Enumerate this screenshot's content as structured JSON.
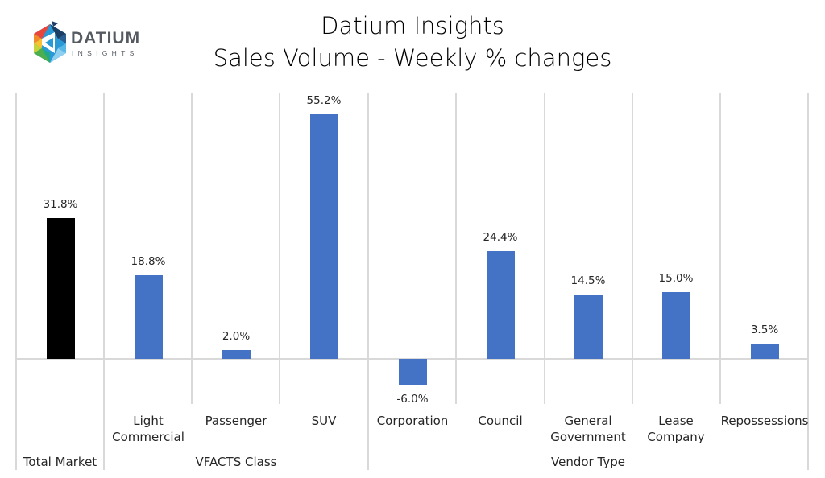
{
  "logo": {
    "word": "DATIUM",
    "sub": "INSIGHTS"
  },
  "title": {
    "line1": "Datium Insights",
    "line2": "Sales Volume - Weekly % changes"
  },
  "colors": {
    "total_bar": "#000000",
    "series_bar": "#4472C4",
    "grid": "#d9d9d9",
    "text": "#262626"
  },
  "groups": [
    {
      "label": "Total Market"
    },
    {
      "label": "VFACTS Class"
    },
    {
      "label": "Vendor Type"
    }
  ],
  "bars": [
    {
      "group": "Total Market",
      "category": "",
      "value": 31.8,
      "label": "31.8%",
      "color": "#000000"
    },
    {
      "group": "VFACTS Class",
      "category": "Light Commercial",
      "line1": "Light",
      "line2": "Commercial",
      "value": 18.8,
      "label": "18.8%",
      "color": "#4472C4"
    },
    {
      "group": "VFACTS Class",
      "category": "Passenger",
      "line1": "Passenger",
      "line2": "",
      "value": 2.0,
      "label": "2.0%",
      "color": "#4472C4"
    },
    {
      "group": "VFACTS Class",
      "category": "SUV",
      "line1": "SUV",
      "line2": "",
      "value": 55.2,
      "label": "55.2%",
      "color": "#4472C4"
    },
    {
      "group": "Vendor Type",
      "category": "Corporation",
      "line1": "Corporation",
      "line2": "",
      "value": -6.0,
      "label": "-6.0%",
      "color": "#4472C4"
    },
    {
      "group": "Vendor Type",
      "category": "Council",
      "line1": "Council",
      "line2": "",
      "value": 24.4,
      "label": "24.4%",
      "color": "#4472C4"
    },
    {
      "group": "Vendor Type",
      "category": "General Government",
      "line1": "General",
      "line2": "Government",
      "value": 14.5,
      "label": "14.5%",
      "color": "#4472C4"
    },
    {
      "group": "Vendor Type",
      "category": "Lease Company",
      "line1": "Lease",
      "line2": "Company",
      "value": 15.0,
      "label": "15.0%",
      "color": "#4472C4"
    },
    {
      "group": "Vendor Type",
      "category": "Repossessions",
      "line1": "Repossessions",
      "line2": "",
      "value": 3.5,
      "label": "3.5%",
      "color": "#4472C4"
    }
  ],
  "chart_data": {
    "type": "bar",
    "title": "Datium Insights — Sales Volume - Weekly % changes",
    "xlabel": "",
    "ylabel": "",
    "categories": [
      "Total Market",
      "Light Commercial",
      "Passenger",
      "SUV",
      "Corporation",
      "Council",
      "General Government",
      "Lease Company",
      "Repossessions"
    ],
    "category_groups": [
      {
        "group": "Total Market",
        "categories": [
          "Total Market"
        ]
      },
      {
        "group": "VFACTS Class",
        "categories": [
          "Light Commercial",
          "Passenger",
          "SUV"
        ]
      },
      {
        "group": "Vendor Type",
        "categories": [
          "Corporation",
          "Council",
          "General Government",
          "Lease Company",
          "Repossessions"
        ]
      }
    ],
    "values": [
      31.8,
      18.8,
      2.0,
      55.2,
      -6.0,
      24.4,
      14.5,
      15.0,
      3.5
    ],
    "data_labels": [
      "31.8%",
      "18.8%",
      "2.0%",
      "55.2%",
      "-6.0%",
      "24.4%",
      "14.5%",
      "15.0%",
      "3.5%"
    ],
    "unit": "%",
    "ylim": [
      -10,
      60
    ],
    "grid": "vertical category separators only",
    "legend": "none"
  }
}
